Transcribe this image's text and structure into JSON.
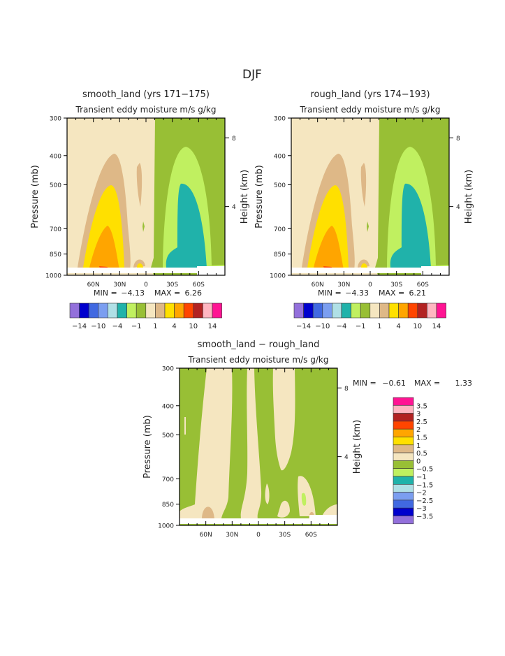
{
  "figure_title": "DJF",
  "colors": [
    "#9370DB",
    "#0000CD",
    "#4169E1",
    "#7B9EF0",
    "#B0E0E6",
    "#20B2AA",
    "#C0F060",
    "#98BF35",
    "#F5E6C0",
    "#DEB887",
    "#FFE000",
    "#FFA500",
    "#FF4500",
    "#B22222",
    "#FFB6C1",
    "#FF1493"
  ],
  "chart_data": [
    {
      "type": "heatmap",
      "title": "smooth_land (yrs 171−175)",
      "subtitle": "Transient eddy moisture m/s g/kg",
      "ylabel": "Pressure (mb)",
      "y2label": "Height (km)",
      "yscale": "log",
      "ylim": [
        1000,
        300
      ],
      "xlim": [
        "90N",
        "90S"
      ],
      "xticks": [
        "60N",
        "30N",
        "0",
        "30S",
        "60S"
      ],
      "yticks": [
        "300",
        "400",
        "500",
        "700",
        "850",
        "1000"
      ],
      "y2ticks": [
        "8",
        "4"
      ],
      "min_label": "MIN =",
      "min": "−4.13",
      "max_label": "MAX =",
      "max": "6.26",
      "colorbar_labels": [
        "−14",
        "−10",
        "−4",
        "−1",
        "1",
        "4",
        "10",
        "14"
      ]
    },
    {
      "type": "heatmap",
      "title": "rough_land (yrs 174−193)",
      "subtitle": "Transient eddy moisture m/s g/kg",
      "ylabel": "Pressure (mb)",
      "y2label": "Height (km)",
      "yscale": "log",
      "ylim": [
        1000,
        300
      ],
      "xlim": [
        "90N",
        "90S"
      ],
      "xticks": [
        "60N",
        "30N",
        "0",
        "30S",
        "60S"
      ],
      "yticks": [
        "300",
        "400",
        "500",
        "700",
        "850",
        "1000"
      ],
      "y2ticks": [
        "8",
        "4"
      ],
      "min_label": "MIN =",
      "min": "−4.33",
      "max_label": "MAX =",
      "max": "6.21",
      "colorbar_labels": [
        "−14",
        "−10",
        "−4",
        "−1",
        "1",
        "4",
        "10",
        "14"
      ]
    },
    {
      "type": "heatmap",
      "title": "smooth_land − rough_land",
      "subtitle": "Transient eddy moisture m/s g/kg",
      "ylabel": "Pressure (mb)",
      "y2label": "Height (km)",
      "yscale": "log",
      "ylim": [
        1000,
        300
      ],
      "xlim": [
        "90N",
        "90S"
      ],
      "xticks": [
        "60N",
        "30N",
        "0",
        "30S",
        "60S"
      ],
      "yticks": [
        "300",
        "400",
        "500",
        "700",
        "850",
        "1000"
      ],
      "y2ticks": [
        "8",
        "4"
      ],
      "min_label": "MIN =",
      "min": "−0.61",
      "max_label": "MAX =",
      "max": "1.33",
      "colorbar_labels": [
        "3.5",
        "3",
        "2.5",
        "2",
        "1.5",
        "1",
        "0.5",
        "0",
        "−0.5",
        "−1",
        "−1.5",
        "−2",
        "−2.5",
        "−3",
        "−3.5"
      ]
    }
  ]
}
